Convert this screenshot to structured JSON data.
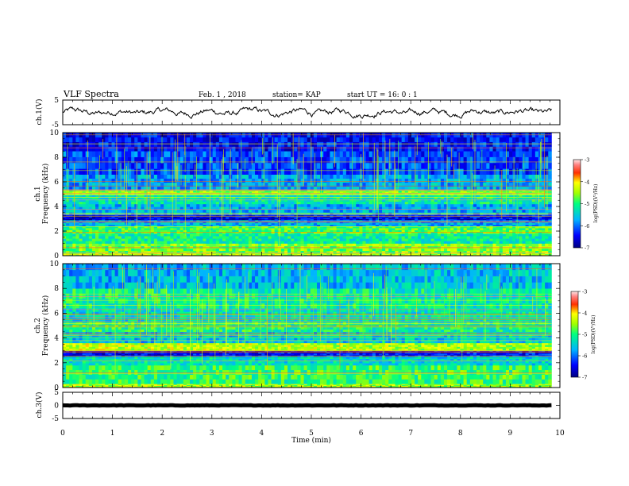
{
  "header": {
    "title": "VLF Spectra",
    "date": "Feb. 1 , 2018",
    "station": "station= KAP",
    "start": "start  UT =   16: 0  : 1"
  },
  "chart_data": [
    {
      "type": "line",
      "name": "ch1-waveform",
      "ylabel": "ch.1(V)",
      "ylim": [
        -5,
        5
      ],
      "yticks": [
        "5",
        "-5"
      ],
      "xlim": [
        0,
        10
      ],
      "data_xmax": 9.83,
      "baseline": 0,
      "amplitude": 1.8
    },
    {
      "type": "heatmap",
      "name": "ch1-spectrogram",
      "ylabel": "ch.1\nFrequency (kHz)",
      "ylim": [
        0,
        10
      ],
      "yticks": [
        "0",
        "2",
        "4",
        "6",
        "8",
        "10"
      ],
      "xlim": [
        0,
        10
      ],
      "data_xmax": 9.83,
      "colorbar": {
        "label": "log(PSD)(V²/Hz)",
        "range": [
          -7,
          -3
        ],
        "ticks": [
          "-3",
          "-4",
          "-5",
          "-6",
          "-7"
        ]
      },
      "bands": [
        {
          "from": 0.0,
          "to": 0.2,
          "level": -4.3
        },
        {
          "from": 0.2,
          "to": 1.0,
          "level": -4.7
        },
        {
          "from": 1.0,
          "to": 1.8,
          "level": -5.1
        },
        {
          "from": 1.8,
          "to": 2.4,
          "level": -4.9
        },
        {
          "from": 2.4,
          "to": 2.9,
          "level": -5.6
        },
        {
          "from": 2.9,
          "to": 3.3,
          "level": -6.6
        },
        {
          "from": 3.3,
          "to": 4.2,
          "level": -5.6
        },
        {
          "from": 4.2,
          "to": 5.0,
          "level": -5.3
        },
        {
          "from": 5.0,
          "to": 5.3,
          "level": -4.5
        },
        {
          "from": 5.3,
          "to": 6.6,
          "level": -5.8
        },
        {
          "from": 6.6,
          "to": 8.5,
          "level": -6.1
        },
        {
          "from": 8.5,
          "to": 10.0,
          "level": -6.5
        }
      ]
    },
    {
      "type": "heatmap",
      "name": "ch2-spectrogram",
      "ylabel": "ch.2\nFrequency (kHz)",
      "ylim": [
        0,
        10
      ],
      "yticks": [
        "0",
        "2",
        "4",
        "6",
        "8",
        "10"
      ],
      "xlim": [
        0,
        10
      ],
      "data_xmax": 9.83,
      "colorbar": {
        "label": "log(PSD)(V²/Hz)",
        "range": [
          -7,
          -3
        ],
        "ticks": [
          "-3",
          "-4",
          "-5",
          "-6",
          "-7"
        ]
      },
      "bands": [
        {
          "from": 0.0,
          "to": 0.3,
          "level": -4.4
        },
        {
          "from": 0.3,
          "to": 1.8,
          "level": -5.0
        },
        {
          "from": 1.8,
          "to": 2.5,
          "level": -5.3
        },
        {
          "from": 2.5,
          "to": 3.0,
          "level": -6.5
        },
        {
          "from": 3.0,
          "to": 3.6,
          "level": -4.3
        },
        {
          "from": 3.6,
          "to": 4.5,
          "level": -5.6
        },
        {
          "from": 4.5,
          "to": 5.3,
          "level": -5.0
        },
        {
          "from": 5.3,
          "to": 6.4,
          "level": -5.4
        },
        {
          "from": 6.4,
          "to": 8.0,
          "level": -5.1
        },
        {
          "from": 8.0,
          "to": 10.0,
          "level": -5.7
        }
      ]
    },
    {
      "type": "line",
      "name": "ch3-waveform",
      "ylabel": "ch.3(V)",
      "ylim": [
        -5,
        5
      ],
      "yticks": [
        "5",
        "0",
        "-5"
      ],
      "xlim": [
        0,
        10
      ],
      "data_xmax": 9.83,
      "baseline": 0,
      "amplitude": 0.15
    }
  ],
  "xaxis": {
    "label": "Time (min)",
    "ticks": [
      "0",
      "1",
      "2",
      "3",
      "4",
      "5",
      "6",
      "7",
      "8",
      "9",
      "10"
    ],
    "range": [
      0,
      10
    ]
  }
}
